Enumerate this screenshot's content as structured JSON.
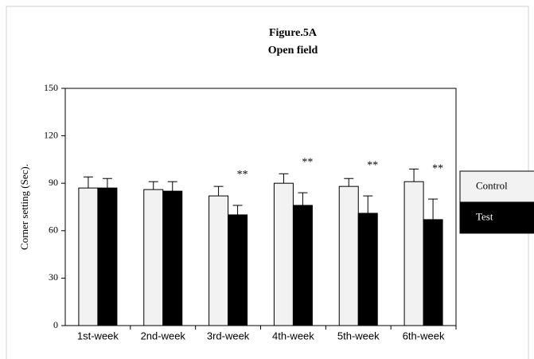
{
  "chart_data": {
    "type": "bar",
    "title": "Figure.5A",
    "subtitle": "Open field",
    "y_label": "Corner setting (Sec).",
    "categories": [
      "1st-week",
      "2nd-week",
      "3rd-week",
      "4th-week",
      "5th-week",
      "6th-week"
    ],
    "series": [
      {
        "name": "Control",
        "color": "#f2f2f2",
        "values": [
          87,
          86,
          82,
          90,
          88,
          91
        ],
        "errors": [
          7,
          5,
          6,
          6,
          5,
          8
        ]
      },
      {
        "name": "Test",
        "color": "#000000",
        "values": [
          87,
          85,
          70,
          76,
          71,
          67
        ],
        "errors": [
          6,
          6,
          6,
          8,
          11,
          13
        ]
      }
    ],
    "annotations": [
      null,
      null,
      "**",
      "**",
      "**",
      "**"
    ],
    "ylim": [
      0,
      150
    ],
    "yticks": [
      0,
      30,
      60,
      90,
      120,
      150
    ],
    "grid": false,
    "legend": "right"
  }
}
